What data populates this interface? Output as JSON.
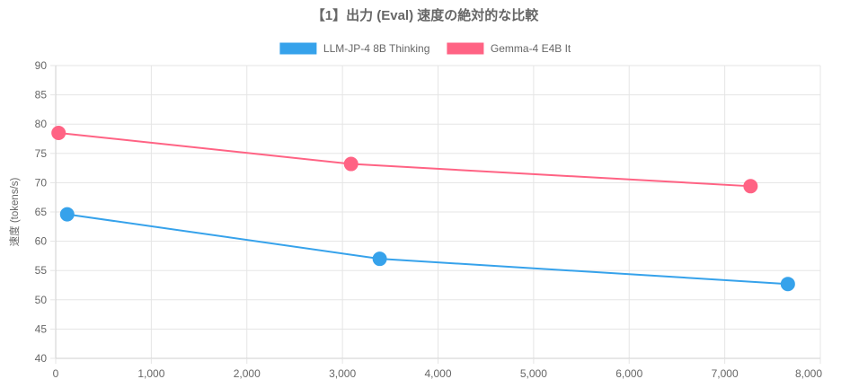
{
  "chart_data": {
    "type": "line",
    "title": "【1】出力 (Eval) 速度の絶対的な比較",
    "xlabel": "",
    "ylabel": "速度 (tokens/s)",
    "xlim": [
      0,
      8000
    ],
    "ylim": [
      40,
      90
    ],
    "x_ticks": [
      "0",
      "1,000",
      "2,000",
      "3,000",
      "4,000",
      "5,000",
      "6,000",
      "7,000",
      "8,000"
    ],
    "y_ticks": [
      "40",
      "45",
      "50",
      "55",
      "60",
      "65",
      "70",
      "75",
      "80",
      "85",
      "90"
    ],
    "grid": true,
    "legend_position": "top-center",
    "series": [
      {
        "name": "LLM-JP-4 8B Thinking",
        "color": "#36a2eb",
        "points": [
          {
            "x": 120,
            "y": 64.6
          },
          {
            "x": 3390,
            "y": 57.0
          },
          {
            "x": 7660,
            "y": 52.7
          }
        ]
      },
      {
        "name": "Gemma-4 E4B It",
        "color": "#ff6384",
        "points": [
          {
            "x": 30,
            "y": 78.5
          },
          {
            "x": 3090,
            "y": 73.2
          },
          {
            "x": 7270,
            "y": 69.4
          }
        ]
      }
    ]
  }
}
